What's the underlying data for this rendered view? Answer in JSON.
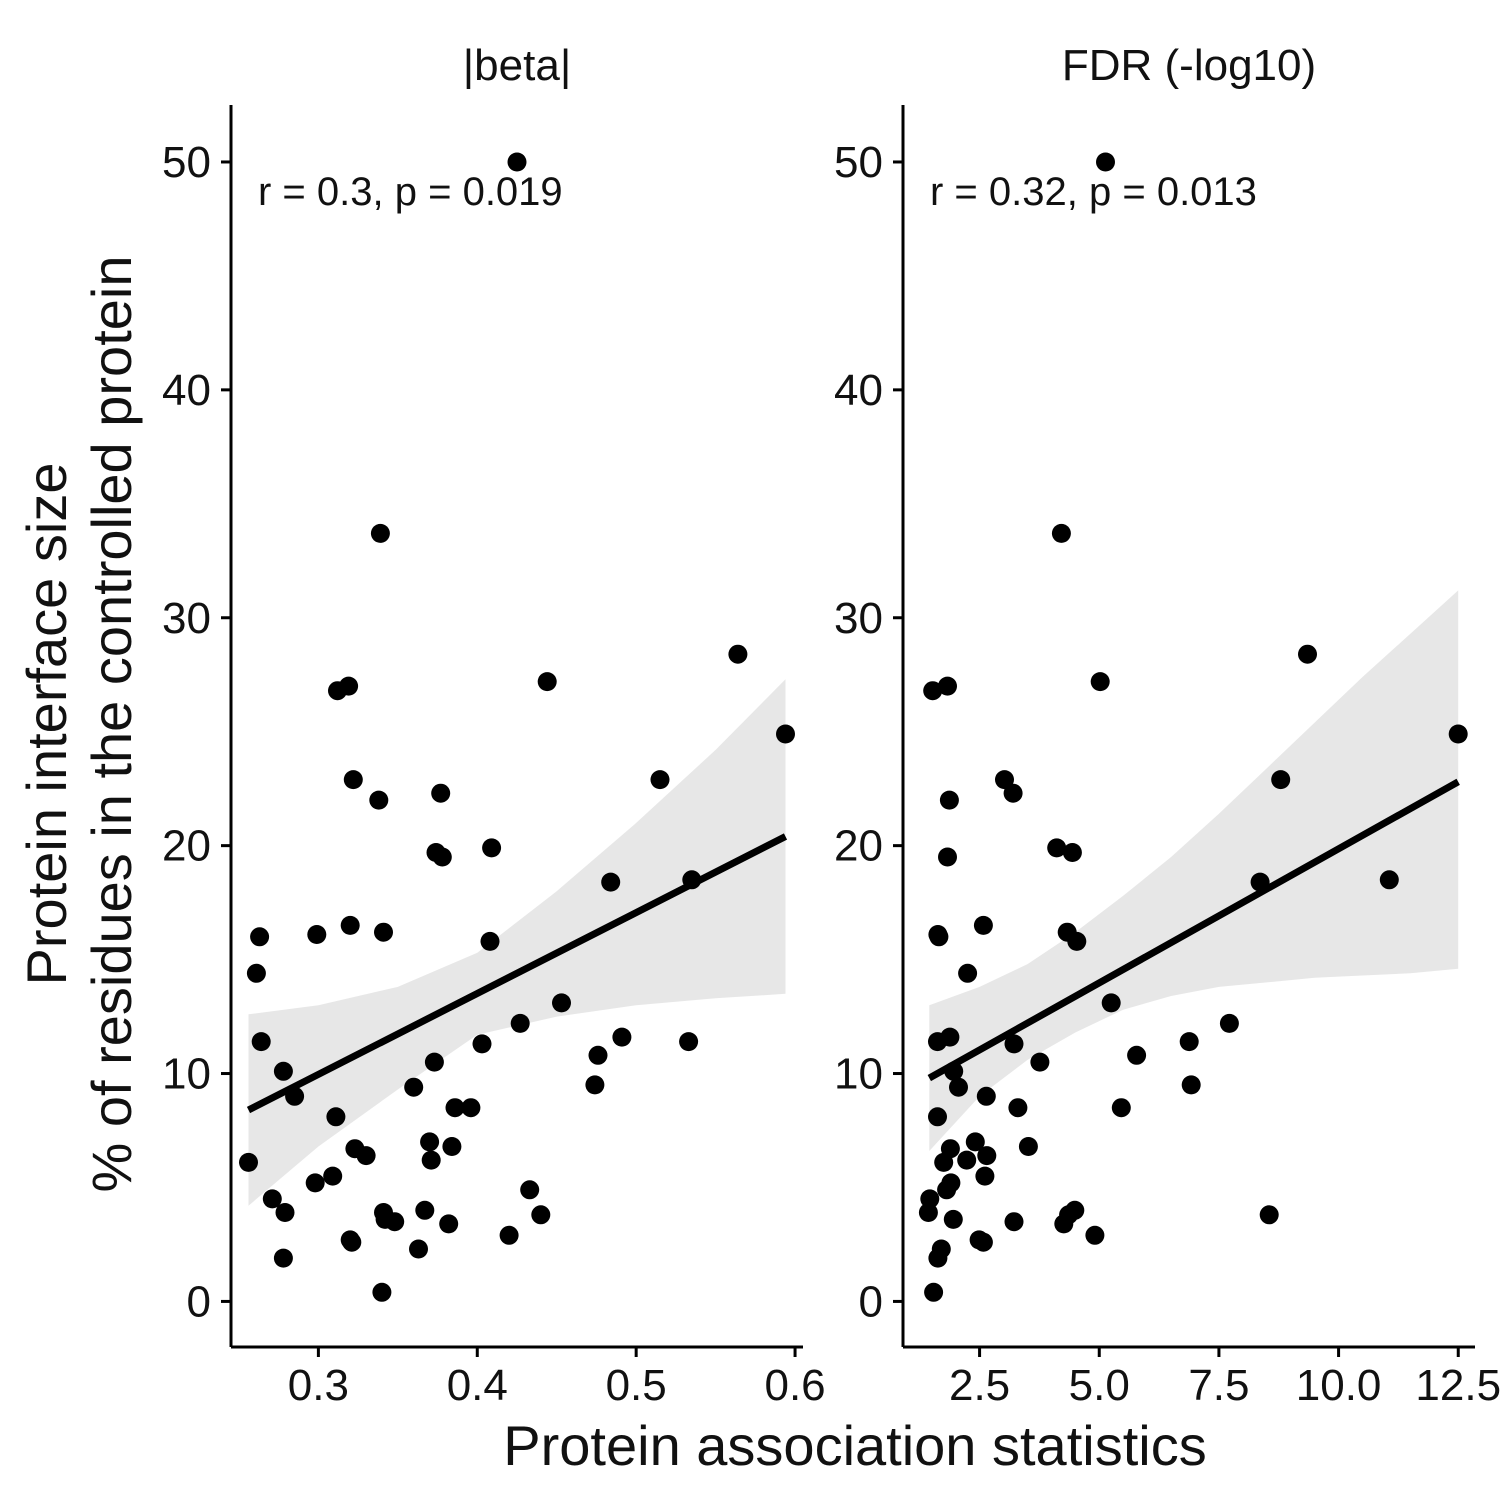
{
  "chart_data": {
    "type": "scatter",
    "ylabel_line1": "Protein interface size",
    "ylabel_line2": "% of residues in the controlled protein",
    "xlabel": "Protein association statistics",
    "colors": {
      "points": "#000000",
      "line": "#000000",
      "band": "#e3e3e3",
      "axis": "#000000"
    },
    "ylim": [
      -2,
      52.5
    ],
    "yticks": [
      0,
      10,
      20,
      30,
      40,
      50
    ],
    "ytick_labels": [
      "0",
      "10",
      "20",
      "30",
      "40",
      "50"
    ],
    "panels": [
      {
        "title": "|beta|",
        "annotation": "r = 0.3, p = 0.019",
        "xlim": [
          0.245,
          0.605
        ],
        "xticks": [
          0.3,
          0.4,
          0.5,
          0.6
        ],
        "xtick_labels": [
          "0.3",
          "0.4",
          "0.5",
          "0.6"
        ],
        "fit": {
          "x": [
            0.256,
            0.594
          ],
          "y": [
            8.4,
            20.4
          ]
        },
        "band": {
          "x": [
            0.256,
            0.3,
            0.35,
            0.4,
            0.45,
            0.5,
            0.55,
            0.594
          ],
          "upper": [
            12.6,
            13.0,
            13.8,
            15.3,
            18.0,
            21.0,
            24.2,
            27.3
          ],
          "lower": [
            4.2,
            6.8,
            9.3,
            11.7,
            12.5,
            13.0,
            13.3,
            13.5
          ]
        },
        "points": [
          [
            0.425,
            50.0
          ],
          [
            0.339,
            33.7
          ],
          [
            0.564,
            28.4
          ],
          [
            0.444,
            27.2
          ],
          [
            0.312,
            26.8
          ],
          [
            0.319,
            27.0
          ],
          [
            0.594,
            24.9
          ],
          [
            0.515,
            22.9
          ],
          [
            0.322,
            22.9
          ],
          [
            0.377,
            22.3
          ],
          [
            0.338,
            22.0
          ],
          [
            0.409,
            19.9
          ],
          [
            0.374,
            19.7
          ],
          [
            0.378,
            19.5
          ],
          [
            0.484,
            18.4
          ],
          [
            0.535,
            18.5
          ],
          [
            0.32,
            16.5
          ],
          [
            0.341,
            16.2
          ],
          [
            0.299,
            16.1
          ],
          [
            0.263,
            16.0
          ],
          [
            0.408,
            15.8
          ],
          [
            0.261,
            14.4
          ],
          [
            0.453,
            13.1
          ],
          [
            0.427,
            12.2
          ],
          [
            0.491,
            11.6
          ],
          [
            0.533,
            11.4
          ],
          [
            0.264,
            11.4
          ],
          [
            0.403,
            11.3
          ],
          [
            0.476,
            10.8
          ],
          [
            0.373,
            10.5
          ],
          [
            0.278,
            10.1
          ],
          [
            0.285,
            9.0
          ],
          [
            0.36,
            9.4
          ],
          [
            0.474,
            9.5
          ],
          [
            0.386,
            8.5
          ],
          [
            0.396,
            8.5
          ],
          [
            0.311,
            8.1
          ],
          [
            0.37,
            7.0
          ],
          [
            0.384,
            6.8
          ],
          [
            0.323,
            6.7
          ],
          [
            0.33,
            6.4
          ],
          [
            0.371,
            6.2
          ],
          [
            0.256,
            6.1
          ],
          [
            0.309,
            5.5
          ],
          [
            0.298,
            5.2
          ],
          [
            0.433,
            4.9
          ],
          [
            0.271,
            4.5
          ],
          [
            0.279,
            3.9
          ],
          [
            0.341,
            3.9
          ],
          [
            0.44,
            3.8
          ],
          [
            0.367,
            4.0
          ],
          [
            0.342,
            3.6
          ],
          [
            0.348,
            3.5
          ],
          [
            0.382,
            3.4
          ],
          [
            0.32,
            2.7
          ],
          [
            0.321,
            2.6
          ],
          [
            0.42,
            2.9
          ],
          [
            0.363,
            2.3
          ],
          [
            0.278,
            1.9
          ],
          [
            0.34,
            0.4
          ]
        ]
      },
      {
        "title": "FDR (-log10)",
        "annotation": "r = 0.32, p = 0.013",
        "xlim": [
          0.9,
          12.85
        ],
        "xticks": [
          2.5,
          5.0,
          7.5,
          10.0,
          12.5
        ],
        "xtick_labels": [
          "2.5",
          "5.0",
          "7.5",
          "10.0",
          "12.5"
        ],
        "fit": {
          "x": [
            1.45,
            12.5
          ],
          "y": [
            9.8,
            22.8
          ]
        },
        "band": {
          "x": [
            1.45,
            2.5,
            3.5,
            4.5,
            5.5,
            6.5,
            7.5,
            8.5,
            9.5,
            10.5,
            11.5,
            12.5
          ],
          "upper": [
            13.0,
            13.8,
            14.8,
            16.2,
            17.8,
            19.5,
            21.4,
            23.4,
            25.4,
            27.4,
            29.3,
            31.2
          ],
          "lower": [
            6.6,
            9.0,
            10.6,
            11.8,
            12.8,
            13.4,
            13.8,
            14.0,
            14.2,
            14.3,
            14.4,
            14.6
          ]
        },
        "points": [
          [
            5.13,
            50.0
          ],
          [
            4.21,
            33.7
          ],
          [
            9.35,
            28.4
          ],
          [
            5.02,
            27.2
          ],
          [
            1.52,
            26.8
          ],
          [
            1.83,
            27.0
          ],
          [
            12.5,
            24.9
          ],
          [
            8.79,
            22.9
          ],
          [
            3.02,
            22.9
          ],
          [
            3.2,
            22.3
          ],
          [
            1.87,
            22.0
          ],
          [
            4.11,
            19.9
          ],
          [
            4.44,
            19.7
          ],
          [
            1.83,
            19.5
          ],
          [
            8.36,
            18.4
          ],
          [
            11.06,
            18.5
          ],
          [
            2.58,
            16.5
          ],
          [
            4.33,
            16.2
          ],
          [
            1.63,
            16.1
          ],
          [
            1.65,
            16.0
          ],
          [
            4.53,
            15.8
          ],
          [
            2.25,
            14.4
          ],
          [
            5.25,
            13.1
          ],
          [
            7.72,
            12.2
          ],
          [
            1.88,
            11.6
          ],
          [
            6.88,
            11.4
          ],
          [
            1.62,
            11.4
          ],
          [
            3.22,
            11.3
          ],
          [
            5.78,
            10.8
          ],
          [
            3.76,
            10.5
          ],
          [
            1.96,
            10.1
          ],
          [
            2.06,
            9.4
          ],
          [
            2.64,
            9.0
          ],
          [
            6.92,
            9.5
          ],
          [
            3.3,
            8.5
          ],
          [
            5.46,
            8.5
          ],
          [
            1.62,
            8.1
          ],
          [
            2.41,
            7.0
          ],
          [
            3.52,
            6.8
          ],
          [
            1.89,
            6.7
          ],
          [
            2.65,
            6.4
          ],
          [
            2.23,
            6.2
          ],
          [
            1.75,
            6.1
          ],
          [
            2.61,
            5.5
          ],
          [
            1.9,
            5.2
          ],
          [
            1.81,
            4.9
          ],
          [
            1.46,
            4.5
          ],
          [
            1.43,
            3.9
          ],
          [
            4.49,
            4.0
          ],
          [
            8.55,
            3.8
          ],
          [
            4.36,
            3.8
          ],
          [
            1.95,
            3.6
          ],
          [
            3.22,
            3.5
          ],
          [
            4.26,
            3.4
          ],
          [
            2.49,
            2.7
          ],
          [
            2.58,
            2.6
          ],
          [
            4.91,
            2.9
          ],
          [
            1.7,
            2.3
          ],
          [
            1.63,
            1.9
          ],
          [
            1.54,
            0.4
          ]
        ]
      }
    ]
  }
}
